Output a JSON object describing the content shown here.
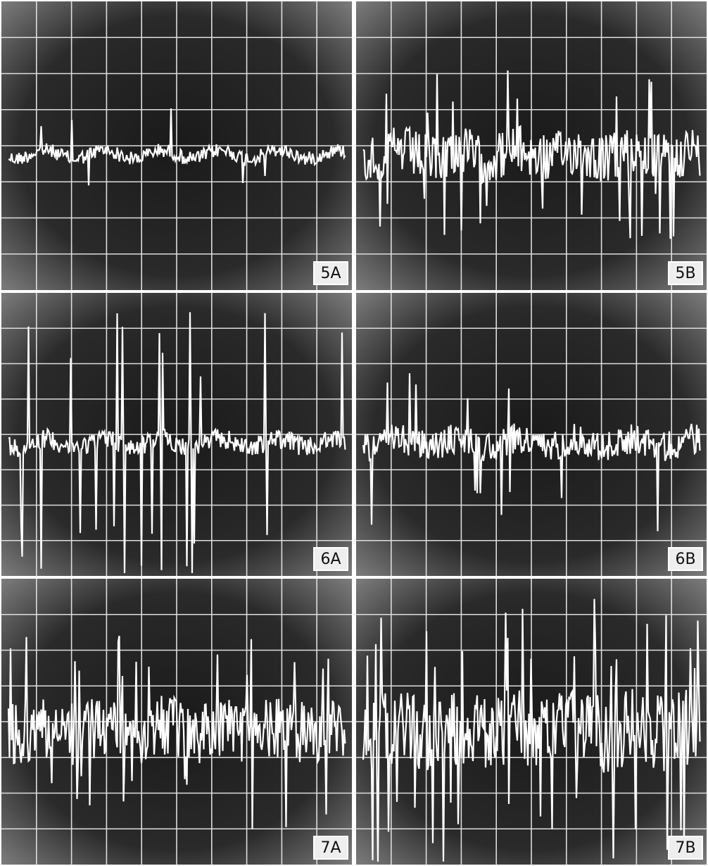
{
  "panels": [
    {
      "label": "5A"
    },
    {
      "label": "5B"
    },
    {
      "label": "6A"
    },
    {
      "label": "6B"
    },
    {
      "label": "7A"
    },
    {
      "label": "7B"
    }
  ]
}
